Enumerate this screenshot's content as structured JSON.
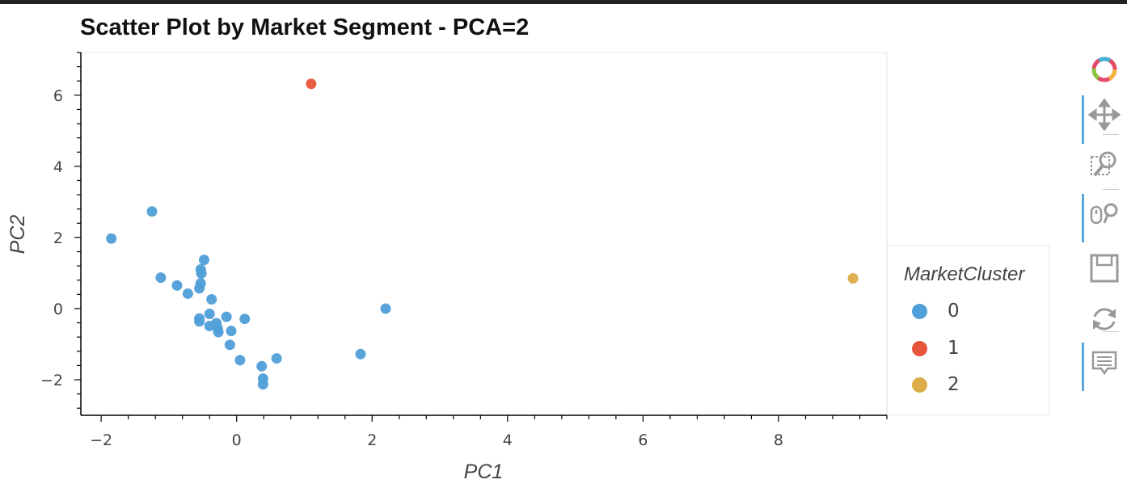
{
  "chart_data": {
    "type": "scatter",
    "title": "Scatter Plot by Market Segment - PCA=2",
    "xlabel": "PC1",
    "ylabel": "PC2",
    "xlim": [
      -2.3,
      9.6
    ],
    "ylim": [
      -3,
      7.2
    ],
    "x_ticks": [
      -2,
      0,
      2,
      4,
      6,
      8
    ],
    "y_ticks": [
      -2,
      0,
      2,
      4,
      6
    ],
    "grid": false,
    "legend_title": "MarketCluster",
    "legend_position": "right",
    "series": [
      {
        "name": "0",
        "color": "#4f9fd8",
        "points": [
          [
            -1.85,
            1.97
          ],
          [
            -1.25,
            2.73
          ],
          [
            -1.12,
            0.87
          ],
          [
            -0.88,
            0.65
          ],
          [
            -0.72,
            0.42
          ],
          [
            -0.48,
            1.37
          ],
          [
            -0.53,
            1.1
          ],
          [
            -0.52,
            0.99
          ],
          [
            -0.53,
            0.71
          ],
          [
            -0.55,
            0.57
          ],
          [
            -0.37,
            0.26
          ],
          [
            -0.55,
            -0.28
          ],
          [
            -0.55,
            -0.36
          ],
          [
            -0.4,
            -0.15
          ],
          [
            -0.15,
            -0.23
          ],
          [
            0.12,
            -0.29
          ],
          [
            -0.4,
            -0.49
          ],
          [
            -0.3,
            -0.41
          ],
          [
            -0.28,
            -0.55
          ],
          [
            -0.27,
            -0.66
          ],
          [
            -0.08,
            -0.63
          ],
          [
            -0.1,
            -1.02
          ],
          [
            0.05,
            -1.45
          ],
          [
            0.37,
            -1.62
          ],
          [
            0.39,
            -1.97
          ],
          [
            0.39,
            -2.13
          ],
          [
            0.59,
            -1.4
          ],
          [
            1.83,
            -1.28
          ],
          [
            2.2,
            0.0
          ]
        ]
      },
      {
        "name": "1",
        "color": "#e6553a",
        "points": [
          [
            1.1,
            6.32
          ]
        ]
      },
      {
        "name": "2",
        "color": "#ddac4a",
        "points": [
          [
            9.1,
            0.85
          ]
        ]
      }
    ]
  },
  "legend": {
    "title": "MarketCluster",
    "items": [
      {
        "label": "0",
        "color": "#4f9fd8"
      },
      {
        "label": "1",
        "color": "#e6553a"
      },
      {
        "label": "2",
        "color": "#ddac4a"
      }
    ]
  },
  "toolbar": {
    "tools": [
      {
        "icon": "bokeh-logo-icon",
        "active": false
      },
      {
        "icon": "pan-icon",
        "active": true
      },
      {
        "icon": "box-zoom-icon",
        "active": false
      },
      {
        "icon": "wheel-zoom-icon",
        "active": true
      },
      {
        "icon": "save-icon",
        "active": false
      },
      {
        "icon": "reset-icon",
        "active": false
      },
      {
        "icon": "hover-icon",
        "active": true
      }
    ]
  }
}
